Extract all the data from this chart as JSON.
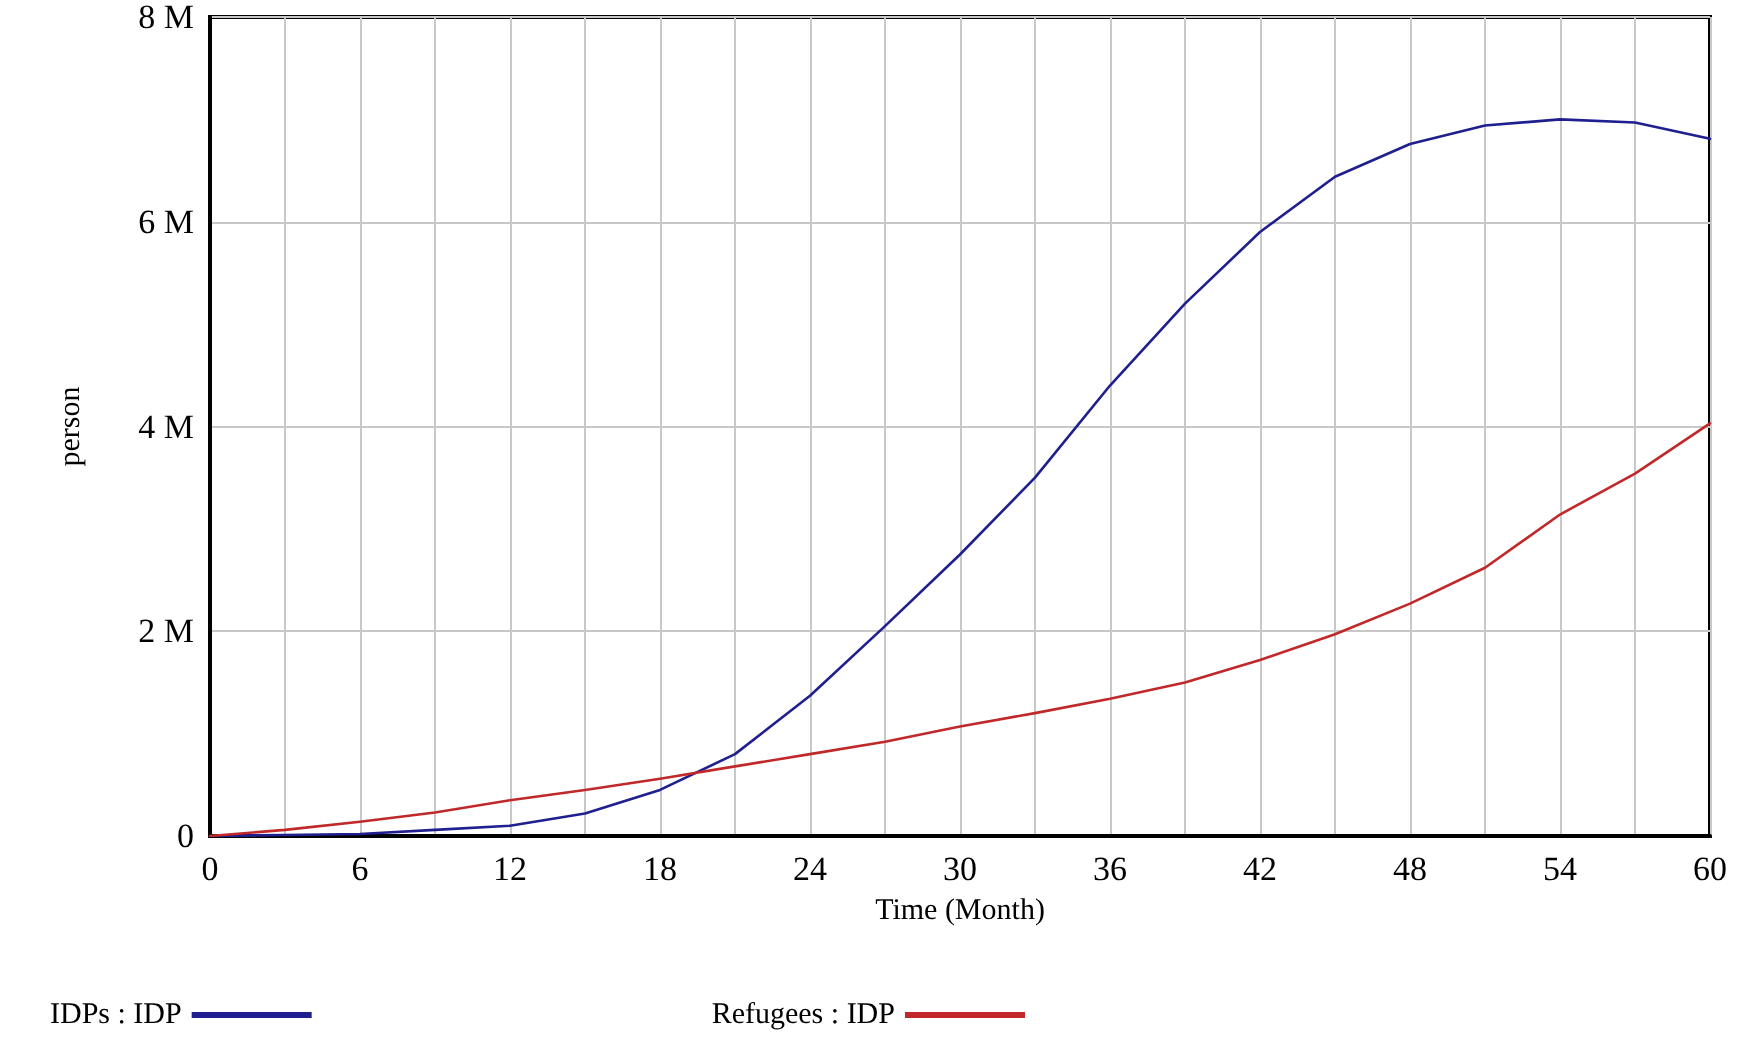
{
  "chart_data": {
    "type": "line",
    "xlabel": "Time (Month)",
    "ylabel": "person",
    "x": [
      0,
      3,
      6,
      9,
      12,
      15,
      18,
      21,
      24,
      27,
      30,
      33,
      36,
      39,
      42,
      45,
      48,
      51,
      54,
      57,
      60
    ],
    "series": [
      {
        "name": "IDPs : IDP",
        "color": "#1f1f8f",
        "values": [
          0,
          0.01,
          0.02,
          0.06,
          0.1,
          0.22,
          0.45,
          0.8,
          1.37,
          2.05,
          2.75,
          3.5,
          4.4,
          5.2,
          5.9,
          6.44,
          6.76,
          6.94,
          7.0,
          6.97,
          6.81
        ]
      },
      {
        "name": "Refugees : IDP",
        "color": "#c0282a",
        "values": [
          0,
          0.06,
          0.14,
          0.23,
          0.35,
          0.45,
          0.56,
          0.68,
          0.8,
          0.92,
          1.07,
          1.2,
          1.34,
          1.5,
          1.72,
          1.97,
          2.27,
          2.62,
          3.14,
          3.54,
          4.03
        ]
      }
    ],
    "xlim": [
      0,
      60
    ],
    "xticks": [
      0,
      {
        "value": 3,
        "label": null
      },
      6,
      {
        "value": 9,
        "label": null
      },
      12,
      {
        "value": 15,
        "label": null
      },
      18,
      {
        "value": 21,
        "label": null
      },
      24,
      {
        "value": 27,
        "label": null
      },
      30,
      {
        "value": 33,
        "label": null
      },
      36,
      {
        "value": 39,
        "label": null
      },
      42,
      {
        "value": 45,
        "label": null
      },
      48,
      {
        "value": 51,
        "label": null
      },
      54,
      {
        "value": 57,
        "label": null
      },
      60
    ],
    "ylim": [
      0,
      8
    ],
    "yticks": [
      {
        "value": 0,
        "label": "0"
      },
      {
        "value": 2,
        "label": "2 M"
      },
      {
        "value": 4,
        "label": "4 M"
      },
      {
        "value": 6,
        "label": "6 M"
      },
      {
        "value": 8,
        "label": "8 M"
      }
    ],
    "grid": true,
    "legend": "bottom",
    "marker": "none",
    "line_style": "solid"
  }
}
